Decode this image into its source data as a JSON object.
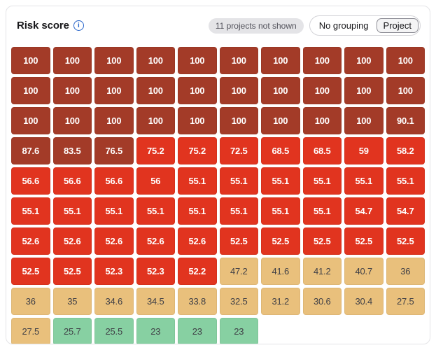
{
  "header": {
    "title": "Risk score",
    "info_icon_glyph": "i",
    "not_shown_badge": "11 projects not shown",
    "grouping_toggle": {
      "options": [
        {
          "label": "No grouping",
          "selected": false
        },
        {
          "label": "Project",
          "selected": true
        }
      ],
      "selected": "Project"
    }
  },
  "chart_data": {
    "type": "heatmap",
    "title": "Risk score",
    "note": "11 projects not shown",
    "value_range": [
      0,
      100
    ],
    "legend_colors": {
      "dark": "#A33B28",
      "red": "#E1341F",
      "tan": "#E9C07C",
      "green": "#87D0A2"
    },
    "rows": [
      {
        "cells": [
          {
            "v": "100",
            "c": "dark"
          },
          {
            "v": "100",
            "c": "dark"
          },
          {
            "v": "100",
            "c": "dark"
          },
          {
            "v": "100",
            "c": "dark"
          },
          {
            "v": "100",
            "c": "dark"
          },
          {
            "v": "100",
            "c": "dark"
          },
          {
            "v": "100",
            "c": "dark"
          },
          {
            "v": "100",
            "c": "dark"
          },
          {
            "v": "100",
            "c": "dark"
          },
          {
            "v": "100",
            "c": "dark"
          }
        ]
      },
      {
        "cells": [
          {
            "v": "100",
            "c": "dark"
          },
          {
            "v": "100",
            "c": "dark"
          },
          {
            "v": "100",
            "c": "dark"
          },
          {
            "v": "100",
            "c": "dark"
          },
          {
            "v": "100",
            "c": "dark"
          },
          {
            "v": "100",
            "c": "dark"
          },
          {
            "v": "100",
            "c": "dark"
          },
          {
            "v": "100",
            "c": "dark"
          },
          {
            "v": "100",
            "c": "dark"
          },
          {
            "v": "100",
            "c": "dark"
          }
        ]
      },
      {
        "cells": [
          {
            "v": "100",
            "c": "dark"
          },
          {
            "v": "100",
            "c": "dark"
          },
          {
            "v": "100",
            "c": "dark"
          },
          {
            "v": "100",
            "c": "dark"
          },
          {
            "v": "100",
            "c": "dark"
          },
          {
            "v": "100",
            "c": "dark"
          },
          {
            "v": "100",
            "c": "dark"
          },
          {
            "v": "100",
            "c": "dark"
          },
          {
            "v": "100",
            "c": "dark"
          },
          {
            "v": "90.1",
            "c": "dark"
          }
        ]
      },
      {
        "cells": [
          {
            "v": "87.6",
            "c": "dark"
          },
          {
            "v": "83.5",
            "c": "dark"
          },
          {
            "v": "76.5",
            "c": "dark"
          },
          {
            "v": "75.2",
            "c": "red"
          },
          {
            "v": "75.2",
            "c": "red"
          },
          {
            "v": "72.5",
            "c": "red"
          },
          {
            "v": "68.5",
            "c": "red"
          },
          {
            "v": "68.5",
            "c": "red"
          },
          {
            "v": "59",
            "c": "red"
          },
          {
            "v": "58.2",
            "c": "red"
          }
        ]
      },
      {
        "cells": [
          {
            "v": "56.6",
            "c": "red"
          },
          {
            "v": "56.6",
            "c": "red"
          },
          {
            "v": "56.6",
            "c": "red"
          },
          {
            "v": "56",
            "c": "red"
          },
          {
            "v": "55.1",
            "c": "red"
          },
          {
            "v": "55.1",
            "c": "red"
          },
          {
            "v": "55.1",
            "c": "red"
          },
          {
            "v": "55.1",
            "c": "red"
          },
          {
            "v": "55.1",
            "c": "red"
          },
          {
            "v": "55.1",
            "c": "red"
          }
        ]
      },
      {
        "cells": [
          {
            "v": "55.1",
            "c": "red"
          },
          {
            "v": "55.1",
            "c": "red"
          },
          {
            "v": "55.1",
            "c": "red"
          },
          {
            "v": "55.1",
            "c": "red"
          },
          {
            "v": "55.1",
            "c": "red"
          },
          {
            "v": "55.1",
            "c": "red"
          },
          {
            "v": "55.1",
            "c": "red"
          },
          {
            "v": "55.1",
            "c": "red"
          },
          {
            "v": "54.7",
            "c": "red"
          },
          {
            "v": "54.7",
            "c": "red"
          }
        ]
      },
      {
        "cells": [
          {
            "v": "52.6",
            "c": "red"
          },
          {
            "v": "52.6",
            "c": "red"
          },
          {
            "v": "52.6",
            "c": "red"
          },
          {
            "v": "52.6",
            "c": "red"
          },
          {
            "v": "52.6",
            "c": "red"
          },
          {
            "v": "52.5",
            "c": "red"
          },
          {
            "v": "52.5",
            "c": "red"
          },
          {
            "v": "52.5",
            "c": "red"
          },
          {
            "v": "52.5",
            "c": "red"
          },
          {
            "v": "52.5",
            "c": "red"
          }
        ]
      },
      {
        "cells": [
          {
            "v": "52.5",
            "c": "red"
          },
          {
            "v": "52.5",
            "c": "red"
          },
          {
            "v": "52.3",
            "c": "red"
          },
          {
            "v": "52.3",
            "c": "red"
          },
          {
            "v": "52.2",
            "c": "red"
          },
          {
            "v": "47.2",
            "c": "tan"
          },
          {
            "v": "41.6",
            "c": "tan"
          },
          {
            "v": "41.2",
            "c": "tan"
          },
          {
            "v": "40.7",
            "c": "tan"
          },
          {
            "v": "36",
            "c": "tan"
          }
        ]
      },
      {
        "cells": [
          {
            "v": "36",
            "c": "tan"
          },
          {
            "v": "35",
            "c": "tan"
          },
          {
            "v": "34.6",
            "c": "tan"
          },
          {
            "v": "34.5",
            "c": "tan"
          },
          {
            "v": "33.8",
            "c": "tan"
          },
          {
            "v": "32.5",
            "c": "tan"
          },
          {
            "v": "31.2",
            "c": "tan"
          },
          {
            "v": "30.6",
            "c": "tan"
          },
          {
            "v": "30.4",
            "c": "tan"
          },
          {
            "v": "27.5",
            "c": "tan"
          }
        ]
      },
      {
        "cells": [
          {
            "v": "27.5",
            "c": "tan"
          },
          {
            "v": "25.7",
            "c": "green"
          },
          {
            "v": "25.5",
            "c": "green"
          },
          {
            "v": "23",
            "c": "green"
          },
          {
            "v": "23",
            "c": "green"
          },
          {
            "v": "23",
            "c": "green"
          }
        ]
      }
    ]
  }
}
